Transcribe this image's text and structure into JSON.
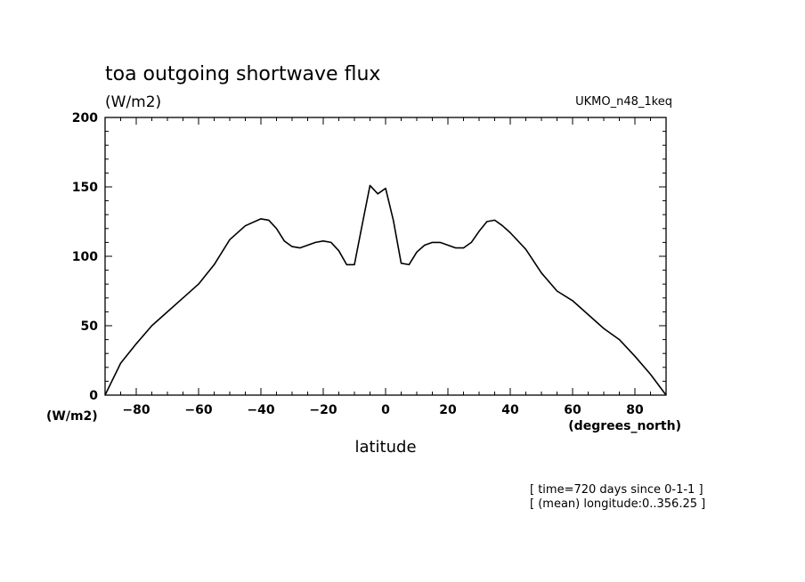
{
  "chart_data": {
    "type": "line",
    "title": "toa outgoing shortwave flux",
    "units_label": "(W/m2)",
    "model_label": "UKMO_n48_1keq",
    "y_axis_unit": "(W/m2)",
    "x_axis_unit": "(degrees_north)",
    "xlabel": "latitude",
    "xlim": [
      -90,
      90
    ],
    "ylim": [
      0,
      200
    ],
    "x_ticks": [
      -80,
      -60,
      -40,
      -20,
      0,
      20,
      40,
      60,
      80
    ],
    "y_ticks": [
      0,
      50,
      100,
      150,
      200
    ],
    "grid": false,
    "annotations": [
      "[ time=720 days since 0-1-1 ]",
      "[ (mean) longitude:0..356.25 ]"
    ],
    "series": [
      {
        "x": [
          -90,
          -85,
          -80,
          -75,
          -70,
          -65,
          -60,
          -55,
          -50,
          -45,
          -40,
          -37.5,
          -35,
          -32.5,
          -30,
          -27.5,
          -25,
          -22.5,
          -20,
          -17.5,
          -15,
          -12.5,
          -10,
          -7.5,
          -5,
          -2.5,
          0,
          2.5,
          5,
          7.5,
          10,
          12.5,
          15,
          17.5,
          20,
          22.5,
          25,
          27.5,
          30,
          32.5,
          35,
          37.5,
          40,
          45,
          50,
          55,
          60,
          65,
          70,
          75,
          80,
          85,
          90
        ],
        "values": [
          0,
          23,
          37,
          50,
          60,
          70,
          80,
          94,
          112,
          122,
          127,
          126,
          120,
          111,
          107,
          106,
          108,
          110,
          111,
          110,
          104,
          94,
          94,
          123,
          151,
          145,
          149,
          126,
          95,
          94,
          103,
          108,
          110,
          110,
          108,
          106,
          106,
          110,
          118,
          125,
          126,
          122,
          117,
          105,
          88,
          75,
          68,
          58,
          48,
          40,
          28,
          15,
          0
        ]
      }
    ]
  }
}
